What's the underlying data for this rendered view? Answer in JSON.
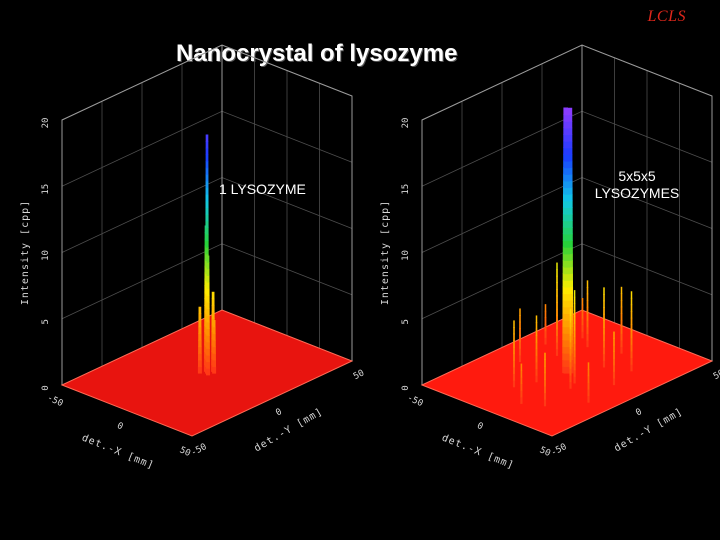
{
  "header": {
    "logo_text": "LCLS",
    "title": "Nanocrystal of lysozyme"
  },
  "chart_data": [
    {
      "type": "surface3d",
      "annotation": "1 LYSOZYME",
      "zlabel": "Intensity [cpp]",
      "xlabel": "det.-X [mm]",
      "ylabel": "det.-Y [mm]",
      "xlim": [
        -50,
        50
      ],
      "ylim": [
        -50,
        50
      ],
      "zlim": [
        0,
        20
      ],
      "z_ticks": [
        "0",
        "5",
        "10",
        "15",
        "20"
      ],
      "x_ticks": [
        "-50",
        "0",
        "50"
      ],
      "y_ticks": [
        "-50",
        "0",
        "50"
      ],
      "peaks": [
        {
          "x": 0,
          "y": 0,
          "z": 18
        },
        {
          "x": -2,
          "y": 1,
          "z": 11
        },
        {
          "x": 2,
          "y": -1,
          "z": 9
        },
        {
          "x": 1,
          "y": 3,
          "z": 6
        },
        {
          "x": -3,
          "y": -2,
          "z": 5
        },
        {
          "x": 3,
          "y": 2,
          "z": 4
        }
      ],
      "colors": {
        "floor": "#e8140f",
        "peak_low": "#ff2a1a",
        "peak_high": "#8a3cff"
      }
    },
    {
      "type": "surface3d",
      "annotation_lines": [
        "5x5x5",
        "LYSOZYMES"
      ],
      "zlabel": "Intensity [cpp]",
      "xlabel": "det.-X [mm]",
      "ylabel": "det.-Y [mm]",
      "xlim": [
        -50,
        50
      ],
      "ylim": [
        -50,
        50
      ],
      "zlim": [
        0,
        20
      ],
      "z_ticks": [
        "0",
        "5",
        "10",
        "15",
        "20"
      ],
      "x_ticks": [
        "-50",
        "0",
        "50"
      ],
      "y_ticks": [
        "-50",
        "0",
        "50"
      ],
      "peaks": [
        {
          "x": 0,
          "y": 0,
          "z": 20
        },
        {
          "x": -1,
          "y": 0,
          "z": 20
        },
        {
          "x": 1,
          "y": 1,
          "z": 20
        },
        {
          "x": -20,
          "y": 10,
          "z": 7
        },
        {
          "x": 15,
          "y": -10,
          "z": 6
        },
        {
          "x": -10,
          "y": -25,
          "z": 5
        },
        {
          "x": 25,
          "y": 20,
          "z": 6
        },
        {
          "x": 5,
          "y": 30,
          "z": 5
        },
        {
          "x": -30,
          "y": -5,
          "z": 4
        },
        {
          "x": 20,
          "y": -30,
          "z": 4
        },
        {
          "x": -15,
          "y": 25,
          "z": 5
        },
        {
          "x": 30,
          "y": 5,
          "z": 4
        },
        {
          "x": 10,
          "y": 15,
          "z": 6
        },
        {
          "x": -5,
          "y": -15,
          "z": 5
        },
        {
          "x": -25,
          "y": 30,
          "z": 3
        },
        {
          "x": 35,
          "y": -15,
          "z": 3
        },
        {
          "x": -35,
          "y": 15,
          "z": 3
        },
        {
          "x": 8,
          "y": -35,
          "z": 3
        },
        {
          "x": -8,
          "y": 8,
          "z": 8
        },
        {
          "x": 12,
          "y": -5,
          "z": 7
        }
      ],
      "colors": {
        "floor": "#ff1a0e",
        "peak_low": "#ff2a1a",
        "peak_high": "#8a3cff"
      }
    }
  ]
}
